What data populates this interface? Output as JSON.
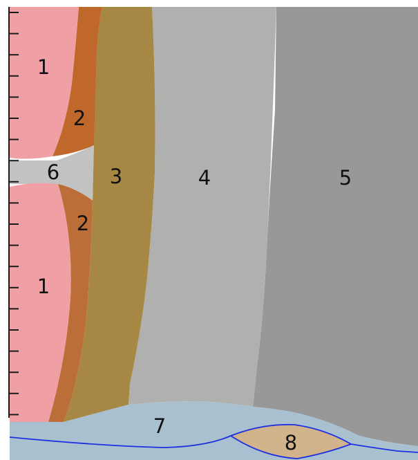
{
  "regions": [
    {
      "id": "1",
      "label": "1",
      "color": "#f0a0a4"
    },
    {
      "id": "2",
      "label": "2",
      "color": "#c0682c"
    },
    {
      "id": "3",
      "label": "3",
      "color": "#a68844"
    },
    {
      "id": "4",
      "label": "4",
      "color": "#b0b0af"
    },
    {
      "id": "5",
      "label": "5",
      "color": "#989898"
    },
    {
      "id": "6",
      "label": "6",
      "color": "#c2c2c2"
    },
    {
      "id": "7",
      "label": "7",
      "color": "#a8c0d0"
    },
    {
      "id": "8",
      "label": "8",
      "color": "#d2b48c"
    }
  ],
  "boundary_line_color": "#1d2fe0"
}
